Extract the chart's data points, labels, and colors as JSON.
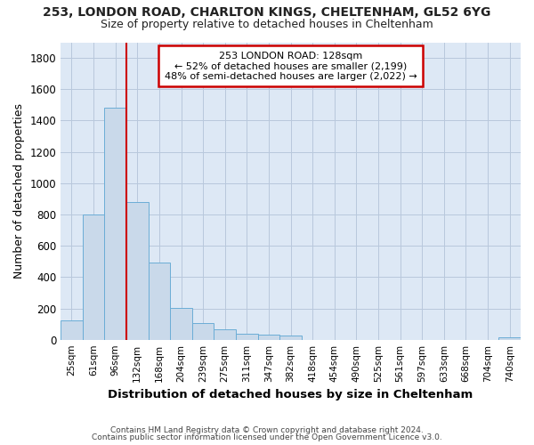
{
  "title_line1": "253, LONDON ROAD, CHARLTON KINGS, CHELTENHAM, GL52 6YG",
  "title_line2": "Size of property relative to detached houses in Cheltenham",
  "xlabel": "Distribution of detached houses by size in Cheltenham",
  "ylabel": "Number of detached properties",
  "footer_line1": "Contains HM Land Registry data © Crown copyright and database right 2024.",
  "footer_line2": "Contains public sector information licensed under the Open Government Licence v3.0.",
  "bin_labels": [
    "25sqm",
    "61sqm",
    "96sqm",
    "132sqm",
    "168sqm",
    "204sqm",
    "239sqm",
    "275sqm",
    "311sqm",
    "347sqm",
    "382sqm",
    "418sqm",
    "454sqm",
    "490sqm",
    "525sqm",
    "561sqm",
    "597sqm",
    "633sqm",
    "668sqm",
    "704sqm",
    "740sqm"
  ],
  "bar_heights": [
    125,
    800,
    1480,
    880,
    490,
    205,
    105,
    65,
    40,
    35,
    25,
    0,
    0,
    0,
    0,
    0,
    0,
    0,
    0,
    0,
    15
  ],
  "bar_color": "#c9d9ea",
  "bar_edge_color": "#6badd6",
  "grid_color": "#b8c8dc",
  "plot_bg_color": "#dde8f5",
  "figure_bg_color": "#ffffff",
  "vline_x": 3,
  "vline_color": "#cc0000",
  "annotation_text_line1": "253 LONDON ROAD: 128sqm",
  "annotation_text_line2": "← 52% of detached houses are smaller (2,199)",
  "annotation_text_line3": "48% of semi-detached houses are larger (2,022) →",
  "annotation_box_color": "#ffffff",
  "annotation_border_color": "#cc0000",
  "ylim": [
    0,
    1900
  ],
  "yticks": [
    0,
    200,
    400,
    600,
    800,
    1000,
    1200,
    1400,
    1600,
    1800
  ]
}
